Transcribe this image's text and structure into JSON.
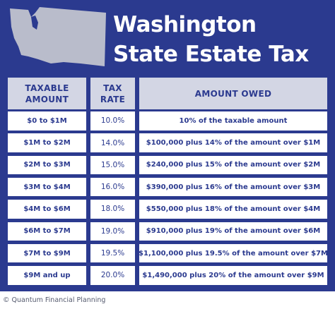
{
  "title": {
    "line1": "Washington",
    "line2": "State Estate Tax"
  },
  "icons": {
    "state_map": "washington-state-map-icon"
  },
  "colors": {
    "background": "#2b3a8f",
    "header_bg": "#d3d6e4",
    "map": "#b9bccb",
    "text": "#2b3a8f"
  },
  "table": {
    "headers": {
      "taxable_amount": "TAXABLE AMOUNT",
      "tax_rate": "TAX RATE",
      "amount_owed": "AMOUNT OWED"
    },
    "rows": [
      {
        "taxable": "$0 to $1M",
        "rate": "10.0%",
        "owed": "10% of the taxable amount"
      },
      {
        "taxable": "$1M to $2M",
        "rate": "14.0%",
        "owed": "$100,000 plus 14% of the amount over $1M"
      },
      {
        "taxable": "$2M to $3M",
        "rate": "15.0%",
        "owed": "$240,000 plus 15% of the amount over $2M"
      },
      {
        "taxable": "$3M to $4M",
        "rate": "16.0%",
        "owed": "$390,000 plus 16% of the amount over $3M"
      },
      {
        "taxable": "$4M to $6M",
        "rate": "18.0%",
        "owed": "$550,000 plus 18% of the amount over $4M"
      },
      {
        "taxable": "$6M to $7M",
        "rate": "19.0%",
        "owed": "$910,000 plus 19% of the amount over $6M"
      },
      {
        "taxable": "$7M to $9M",
        "rate": "19.5%",
        "owed": "$1,100,000 plus 19.5% of the amount over $7M"
      },
      {
        "taxable": "$9M and up",
        "rate": "20.0%",
        "owed": "$1,490,000 plus 20% of the amount over $9M"
      }
    ]
  },
  "footer": {
    "copyright": "© Quantum Financial Planning"
  }
}
